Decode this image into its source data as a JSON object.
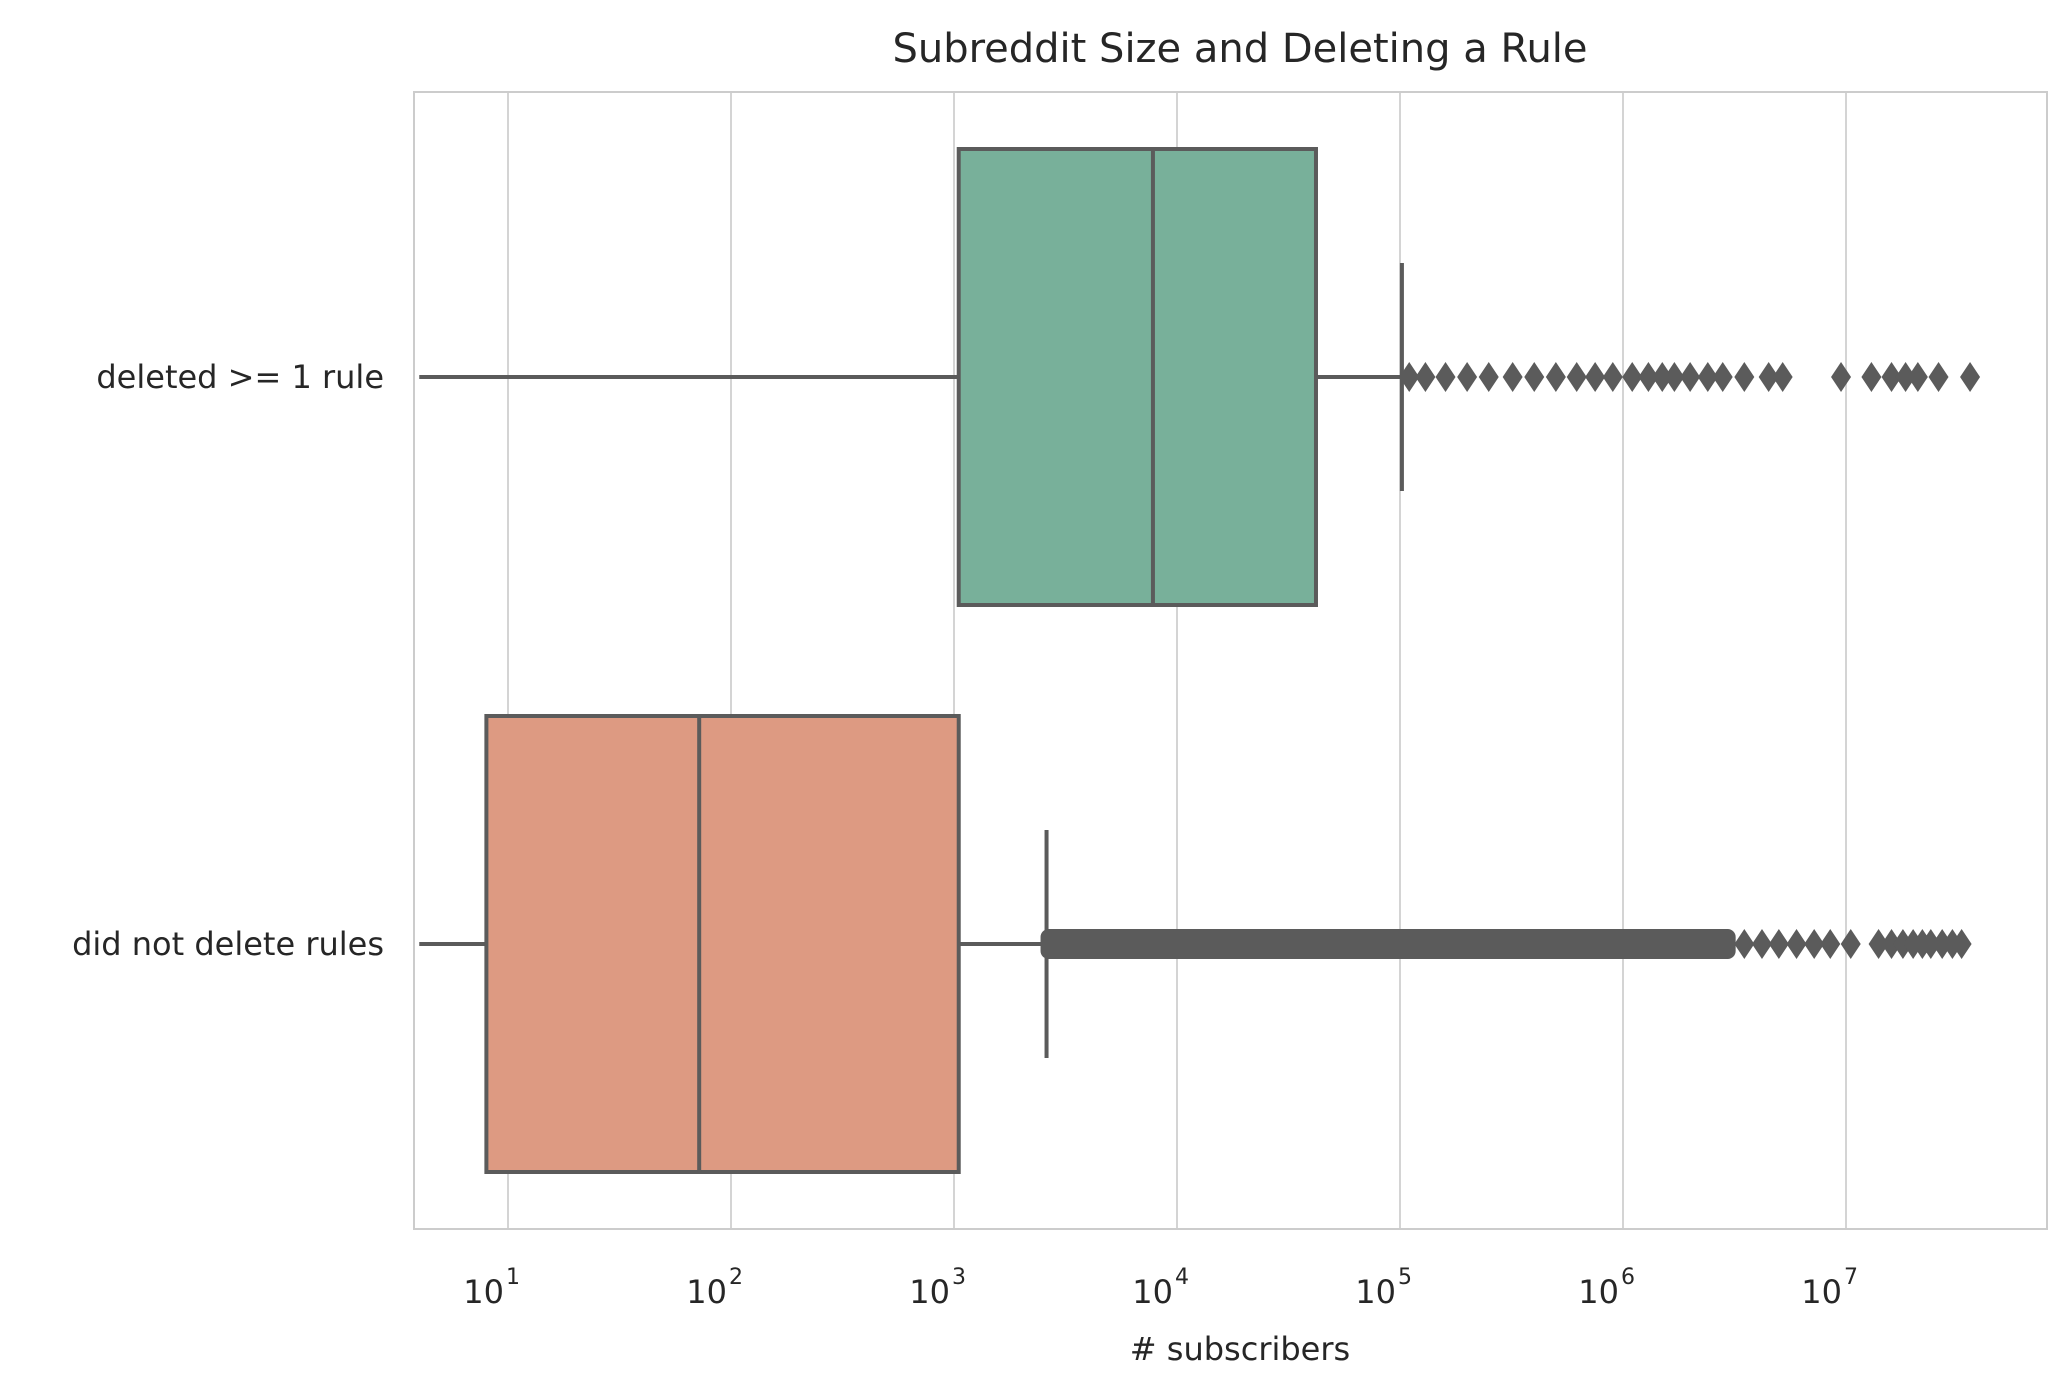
{
  "chart_data": {
    "type": "box",
    "title": "Subreddit Size and Deleting a Rule",
    "xlabel": "# subscribers",
    "ylabel": "",
    "xscale": "log",
    "xlim": [
      4,
      80000000
    ],
    "x_ticks": [
      {
        "value": 10,
        "base": "10",
        "exp": "1"
      },
      {
        "value": 100,
        "base": "10",
        "exp": "2"
      },
      {
        "value": 1000,
        "base": "10",
        "exp": "3"
      },
      {
        "value": 10000,
        "base": "10",
        "exp": "4"
      },
      {
        "value": 100000,
        "base": "10",
        "exp": "5"
      },
      {
        "value": 1000000,
        "base": "10",
        "exp": "6"
      },
      {
        "value": 10000000,
        "base": "10",
        "exp": "7"
      }
    ],
    "grid": true,
    "categories": [
      "deleted >= 1 rule",
      "did not delete rules"
    ],
    "series": [
      {
        "category": "deleted >= 1 rule",
        "color": "#78b09a",
        "whisker_low": 4,
        "q1": 1050,
        "median": 7800,
        "q3": 42000,
        "whisker_high": 102000,
        "outliers": [
          110000,
          130000,
          160000,
          200000,
          250000,
          320000,
          400000,
          500000,
          620000,
          750000,
          900000,
          1100000,
          1300000,
          1500000,
          1700000,
          2000000,
          2400000,
          2800000,
          3500000,
          4500000,
          5200000,
          9500000,
          13000000,
          16000000,
          18500000,
          21000000,
          26000000,
          36000000
        ]
      },
      {
        "category": "did not delete rules",
        "color": "#dd9a82",
        "whisker_low": 4,
        "q1": 8,
        "median": 72,
        "q3": 1050,
        "whisker_high": 2600,
        "dense_outliers_range": [
          2600,
          3200000
        ],
        "outliers": [
          3500000,
          4200000,
          5000000,
          6000000,
          7200000,
          8500000,
          10500000,
          14000000,
          16000000,
          18000000,
          20000000,
          22000000,
          24000000,
          27000000,
          30000000,
          33000000
        ]
      }
    ],
    "colors": {
      "line": "#5b5b5b",
      "grid": "#d4d4d4",
      "frame": "#cccccc"
    }
  }
}
